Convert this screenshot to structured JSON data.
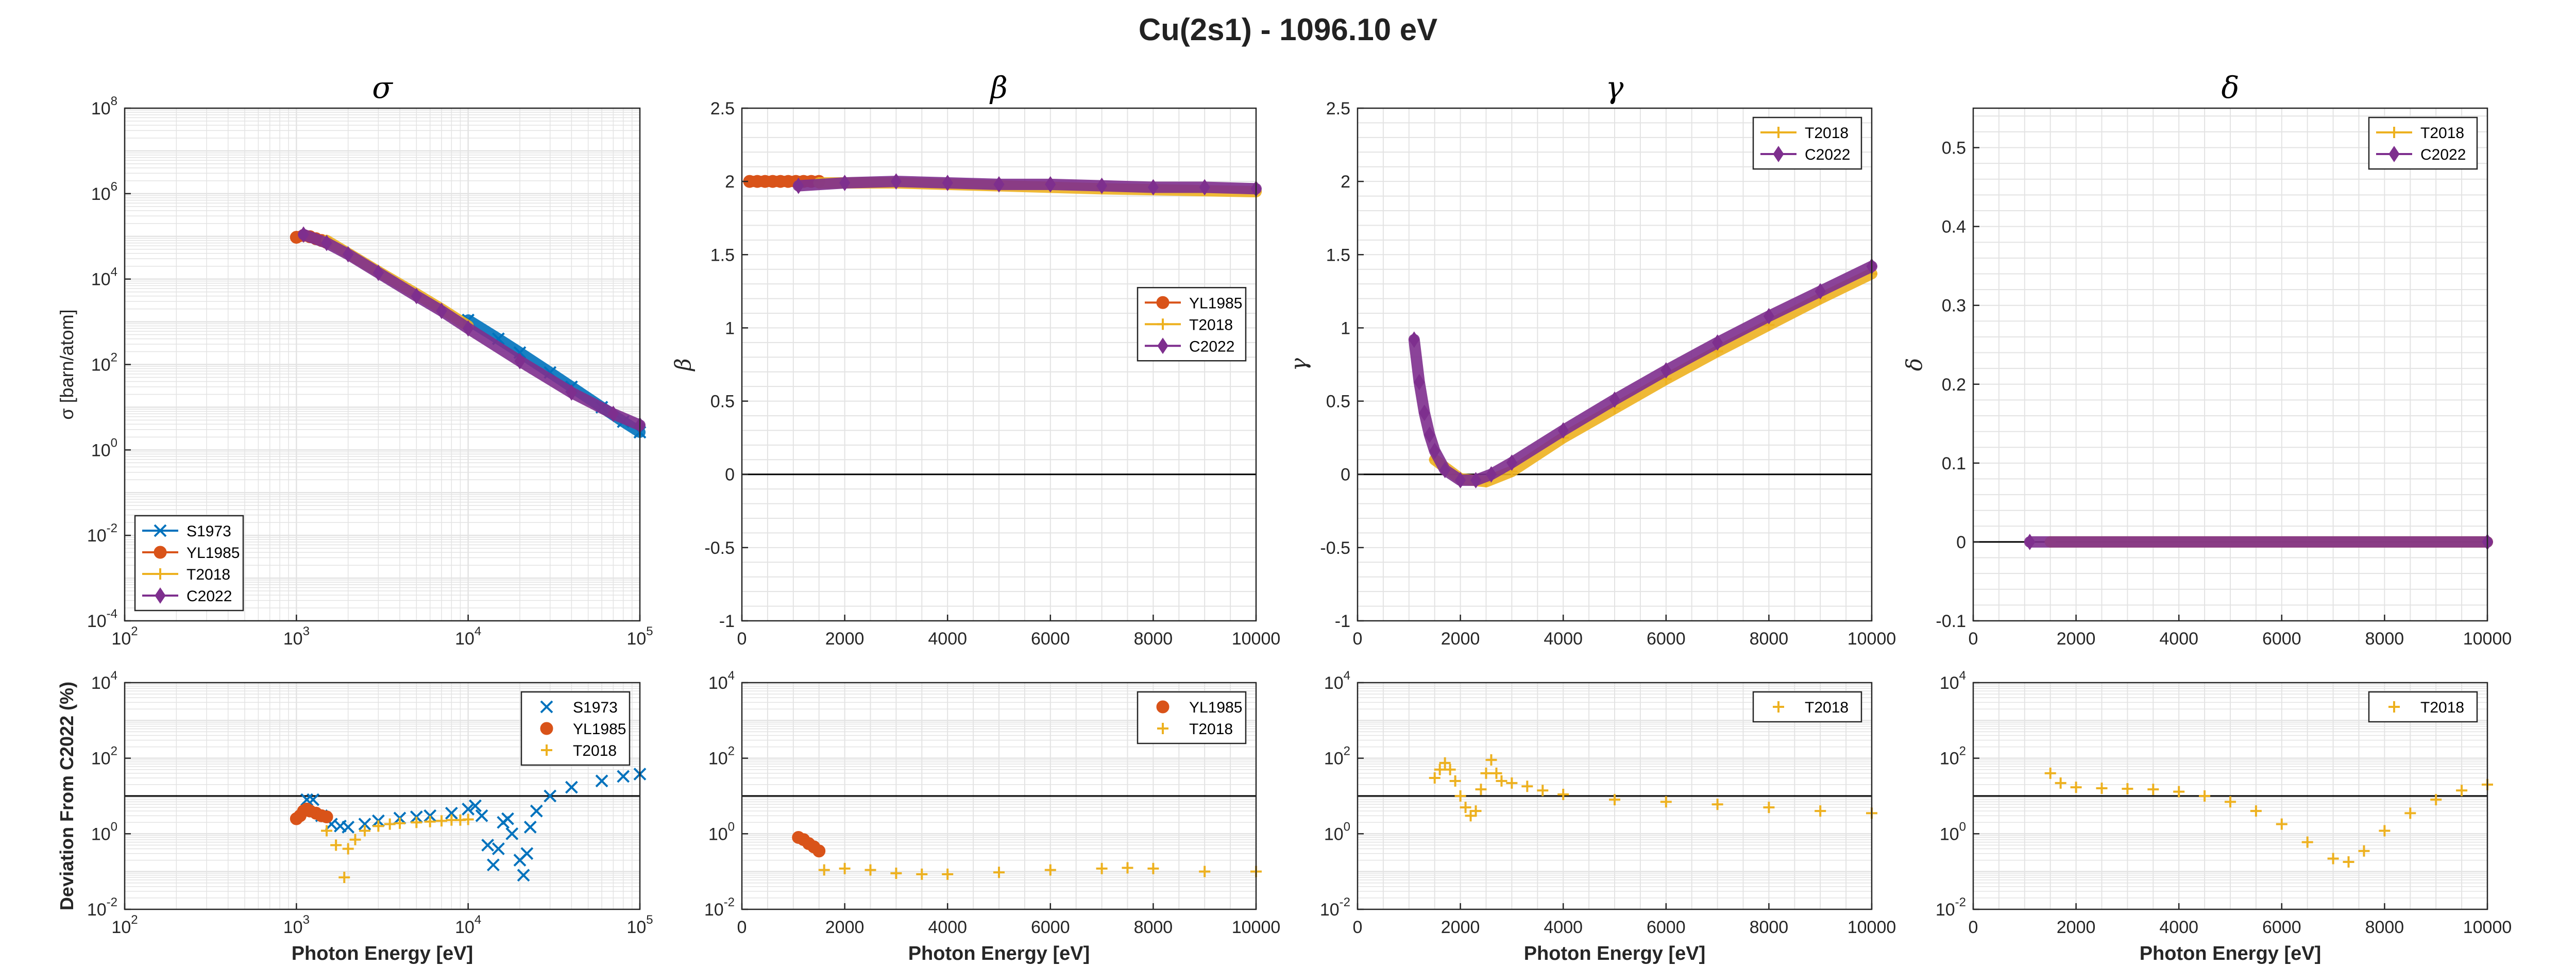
{
  "figure": {
    "title": "Cu(2s1) - 1096.10 eV"
  },
  "styles": {
    "S1973": {
      "color": "#0072BD",
      "marker": "x"
    },
    "YL1985": {
      "color": "#D95319",
      "marker": "o"
    },
    "T2018": {
      "color": "#EDB120",
      "marker": "+"
    },
    "C2022": {
      "color": "#7E2F8E",
      "marker": "d"
    }
  },
  "chart_data": [
    {
      "type": "line",
      "title": "σ",
      "ylabel": "σ [barn/atom]",
      "xlabel": "",
      "xscale": "log",
      "yscale": "log",
      "xlim": [
        100,
        100000
      ],
      "ylim": [
        0.0001,
        100000000
      ],
      "xticks": [
        100,
        1000,
        10000,
        100000
      ],
      "xtick_labels": [
        "10^2",
        "10^3",
        "10^4",
        "10^5"
      ],
      "yticks": [
        0.0001,
        0.01,
        1,
        100,
        10000,
        1000000,
        100000000
      ],
      "ytick_labels": [
        "10^-4",
        "10^-2",
        "10^0",
        "10^2",
        "10^4",
        "10^6",
        "10^8"
      ],
      "legend": {
        "location": "bottom-left",
        "entries": [
          "S1973",
          "YL1985",
          "T2018",
          "C2022"
        ]
      },
      "series": [
        {
          "name": "S1973",
          "x": [
            10000,
            15000,
            20000,
            30000,
            40000,
            60000,
            80000,
            100000
          ],
          "y": [
            1100,
            400,
            190,
            65,
            30,
            10,
            4.6,
            2.6
          ]
        },
        {
          "name": "YL1985",
          "x": [
            1000,
            1100,
            1200,
            1300,
            1400,
            1500
          ],
          "y": [
            95000,
            105000,
            98000,
            88000,
            80000,
            72000
          ]
        },
        {
          "name": "T2018",
          "x": [
            1500,
            2000,
            3000,
            5000,
            7000,
            10000
          ],
          "y": [
            80000,
            40000,
            15000,
            4500,
            2000,
            800
          ]
        },
        {
          "name": "C2022",
          "x": [
            1100,
            1500,
            2000,
            3000,
            5000,
            7000,
            10000,
            20000,
            40000,
            70000,
            100000
          ],
          "y": [
            110000,
            70000,
            38000,
            14000,
            4000,
            1800,
            700,
            120,
            22,
            7,
            3.8
          ]
        }
      ]
    },
    {
      "type": "line",
      "title": "β",
      "ylabel": "β",
      "xlabel": "",
      "xlim": [
        0,
        10000
      ],
      "ylim": [
        -1,
        2.5
      ],
      "xticks": [
        0,
        2000,
        4000,
        6000,
        8000,
        10000
      ],
      "xtick_labels": [
        "0",
        "2000",
        "4000",
        "6000",
        "8000",
        "10000"
      ],
      "yticks": [
        -1,
        -0.5,
        0,
        0.5,
        1,
        1.5,
        2,
        2.5
      ],
      "ytick_labels": [
        "-1",
        "-0.5",
        "0",
        "0.5",
        "1",
        "1.5",
        "2",
        "2.5"
      ],
      "legend": {
        "location": "right-middle",
        "entries": [
          "YL1985",
          "T2018",
          "C2022"
        ]
      },
      "series": [
        {
          "name": "YL1985",
          "x": [
            150,
            300,
            450,
            600,
            750,
            900,
            1050,
            1200,
            1350,
            1500
          ],
          "y": [
            2,
            2,
            2,
            2,
            2,
            2,
            2,
            2,
            2,
            2
          ]
        },
        {
          "name": "T2018",
          "x": [
            1500,
            3000,
            5000,
            7000,
            10000
          ],
          "y": [
            1.99,
            1.99,
            1.97,
            1.95,
            1.93
          ]
        },
        {
          "name": "C2022",
          "x": [
            1100,
            2000,
            3000,
            4000,
            5000,
            6000,
            7000,
            8000,
            9000,
            10000
          ],
          "y": [
            1.97,
            1.99,
            2.0,
            1.99,
            1.98,
            1.98,
            1.97,
            1.96,
            1.96,
            1.95
          ]
        }
      ]
    },
    {
      "type": "line",
      "title": "γ",
      "ylabel": "γ",
      "xlabel": "",
      "xlim": [
        0,
        10000
      ],
      "ylim": [
        -1,
        2.5
      ],
      "xticks": [
        0,
        2000,
        4000,
        6000,
        8000,
        10000
      ],
      "xtick_labels": [
        "0",
        "2000",
        "4000",
        "6000",
        "8000",
        "10000"
      ],
      "yticks": [
        -1,
        -0.5,
        0,
        0.5,
        1,
        1.5,
        2,
        2.5
      ],
      "ytick_labels": [
        "-1",
        "-0.5",
        "0",
        "0.5",
        "1",
        "1.5",
        "2",
        "2.5"
      ],
      "legend": {
        "location": "top-right",
        "entries": [
          "T2018",
          "C2022"
        ]
      },
      "series": [
        {
          "name": "T2018",
          "x": [
            1500,
            2000,
            2500,
            3000,
            4000,
            5000,
            6000,
            7000,
            8000,
            9000,
            10000
          ],
          "y": [
            0.1,
            -0.03,
            -0.05,
            0.02,
            0.25,
            0.45,
            0.65,
            0.84,
            1.02,
            1.2,
            1.37
          ]
        },
        {
          "name": "C2022",
          "x": [
            1100,
            1200,
            1300,
            1400,
            1500,
            1700,
            2000,
            2300,
            2600,
            3000,
            4000,
            5000,
            6000,
            7000,
            8000,
            9000,
            10000
          ],
          "y": [
            0.92,
            0.63,
            0.42,
            0.27,
            0.16,
            0.03,
            -0.04,
            -0.04,
            0.0,
            0.08,
            0.3,
            0.51,
            0.71,
            0.9,
            1.08,
            1.25,
            1.42
          ]
        }
      ]
    },
    {
      "type": "line",
      "title": "δ",
      "ylabel": "δ",
      "xlabel": "",
      "xlim": [
        0,
        10000
      ],
      "ylim": [
        -0.1,
        0.55
      ],
      "xticks": [
        0,
        2000,
        4000,
        6000,
        8000,
        10000
      ],
      "xtick_labels": [
        "0",
        "2000",
        "4000",
        "6000",
        "8000",
        "10000"
      ],
      "yticks": [
        -0.1,
        0,
        0.1,
        0.2,
        0.3,
        0.4,
        0.5
      ],
      "ytick_labels": [
        "-0.1",
        "0",
        "0.1",
        "0.2",
        "0.3",
        "0.4",
        "0.5"
      ],
      "legend": {
        "location": "top-right",
        "entries": [
          "T2018",
          "C2022"
        ]
      },
      "series": [
        {
          "name": "T2018",
          "x": [
            1500,
            10000
          ],
          "y": [
            0,
            0
          ]
        },
        {
          "name": "C2022",
          "x": [
            1100,
            10000
          ],
          "y": [
            0,
            0
          ]
        }
      ]
    },
    {
      "type": "scatter",
      "title": "",
      "ylabel": "Deviation From C2022 (%)",
      "xlabel": "Photon Energy [eV]",
      "xscale": "log",
      "yscale": "log",
      "xlim": [
        100,
        100000
      ],
      "ylim": [
        0.01,
        10000
      ],
      "xticks": [
        100,
        1000,
        10000,
        100000
      ],
      "xtick_labels": [
        "10^2",
        "10^3",
        "10^4",
        "10^5"
      ],
      "yticks": [
        0.01,
        1,
        100,
        10000
      ],
      "ytick_labels": [
        "10^-2",
        "10^0",
        "10^2",
        "10^4"
      ],
      "reference_line": 10,
      "legend": {
        "location": "top-right",
        "entries": [
          "S1973",
          "YL1985",
          "T2018"
        ]
      },
      "series": [
        {
          "name": "S1973",
          "x": [
            1150,
            1250,
            1400,
            1600,
            1800,
            2000,
            2500,
            3000,
            4000,
            5000,
            6000,
            8000,
            10000,
            11000,
            12000,
            13000,
            14000,
            15000,
            16000,
            17000,
            18000,
            20000,
            21000,
            22000,
            23000,
            25000,
            30000,
            40000,
            60000,
            80000,
            100000
          ],
          "y": [
            8,
            8,
            3,
            1.8,
            1.6,
            1.5,
            1.8,
            2.2,
            2.6,
            2.8,
            3.0,
            3.5,
            4.5,
            5.5,
            3.0,
            0.5,
            0.15,
            0.4,
            2.0,
            2.5,
            1.0,
            0.2,
            0.08,
            0.3,
            1.5,
            4,
            10,
            17,
            25,
            33,
            38
          ]
        },
        {
          "name": "YL1985",
          "x": [
            1000,
            1050,
            1100,
            1150,
            1200,
            1300,
            1400,
            1500
          ],
          "y": [
            2.5,
            3,
            4,
            4.5,
            4,
            3.5,
            3,
            2.8
          ]
        },
        {
          "name": "T2018",
          "x": [
            1500,
            1700,
            1900,
            2000,
            2200,
            2500,
            3000,
            3500,
            4000,
            5000,
            6000,
            7000,
            8000,
            9000,
            10000
          ],
          "y": [
            1.2,
            0.5,
            0.07,
            0.4,
            0.7,
            1.2,
            1.6,
            1.8,
            1.9,
            2.0,
            2.1,
            2.2,
            2.3,
            2.3,
            2.4
          ]
        }
      ]
    },
    {
      "type": "scatter",
      "title": "",
      "ylabel": "",
      "xlabel": "Photon Energy [eV]",
      "yscale": "log",
      "xlim": [
        0,
        10000
      ],
      "ylim": [
        0.01,
        10000
      ],
      "xticks": [
        0,
        2000,
        4000,
        6000,
        8000,
        10000
      ],
      "xtick_labels": [
        "0",
        "2000",
        "4000",
        "6000",
        "8000",
        "10000"
      ],
      "yticks": [
        0.01,
        1,
        100,
        10000
      ],
      "ytick_labels": [
        "10^-2",
        "10^0",
        "10^2",
        "10^4"
      ],
      "reference_line": 10,
      "legend": {
        "location": "top-right",
        "entries": [
          "YL1985",
          "T2018"
        ]
      },
      "series": [
        {
          "name": "YL1985",
          "x": [
            1100,
            1200,
            1300,
            1400,
            1500
          ],
          "y": [
            0.8,
            0.7,
            0.55,
            0.45,
            0.35
          ]
        },
        {
          "name": "T2018",
          "x": [
            1600,
            2000,
            2500,
            3000,
            3500,
            4000,
            5000,
            6000,
            7000,
            7500,
            8000,
            9000,
            10000
          ],
          "y": [
            0.11,
            0.12,
            0.11,
            0.09,
            0.085,
            0.085,
            0.095,
            0.11,
            0.12,
            0.125,
            0.12,
            0.1,
            0.1
          ]
        }
      ]
    },
    {
      "type": "scatter",
      "title": "",
      "ylabel": "",
      "xlabel": "Photon Energy [eV]",
      "yscale": "log",
      "xlim": [
        0,
        10000
      ],
      "ylim": [
        0.01,
        10000
      ],
      "xticks": [
        0,
        2000,
        4000,
        6000,
        8000,
        10000
      ],
      "xtick_labels": [
        "0",
        "2000",
        "4000",
        "6000",
        "8000",
        "10000"
      ],
      "yticks": [
        0.01,
        1,
        100,
        10000
      ],
      "ytick_labels": [
        "10^-2",
        "10^0",
        "10^2",
        "10^4"
      ],
      "reference_line": 10,
      "legend": {
        "location": "top-right",
        "entries": [
          "T2018"
        ]
      },
      "series": [
        {
          "name": "T2018",
          "x": [
            1500,
            1600,
            1700,
            1800,
            1900,
            2000,
            2100,
            2200,
            2300,
            2400,
            2500,
            2600,
            2700,
            2800,
            3000,
            3300,
            3600,
            4000,
            5000,
            6000,
            7000,
            8000,
            9000,
            10000
          ],
          "y": [
            30,
            50,
            75,
            50,
            25,
            10,
            5,
            3,
            4,
            15,
            40,
            90,
            40,
            25,
            22,
            18,
            14,
            11,
            8,
            7,
            6,
            5,
            4,
            3.5
          ]
        }
      ]
    },
    {
      "type": "scatter",
      "title": "",
      "ylabel": "",
      "xlabel": "Photon Energy [eV]",
      "yscale": "log",
      "xlim": [
        0,
        10000
      ],
      "ylim": [
        0.01,
        10000
      ],
      "xticks": [
        0,
        2000,
        4000,
        6000,
        8000,
        10000
      ],
      "xtick_labels": [
        "0",
        "2000",
        "4000",
        "6000",
        "8000",
        "10000"
      ],
      "yticks": [
        0.01,
        1,
        100,
        10000
      ],
      "ytick_labels": [
        "10^-2",
        "10^0",
        "10^2",
        "10^4"
      ],
      "reference_line": 10,
      "legend": {
        "location": "top-right",
        "entries": [
          "T2018"
        ]
      },
      "series": [
        {
          "name": "T2018",
          "x": [
            1500,
            1700,
            2000,
            2500,
            3000,
            3500,
            4000,
            4500,
            5000,
            5500,
            6000,
            6500,
            7000,
            7300,
            7600,
            8000,
            8500,
            9000,
            9500,
            10000
          ],
          "y": [
            40,
            22,
            17,
            16,
            15.5,
            15,
            13,
            10,
            7,
            4,
            1.8,
            0.6,
            0.22,
            0.18,
            0.35,
            1.2,
            3.5,
            8,
            14,
            20
          ]
        }
      ]
    }
  ]
}
